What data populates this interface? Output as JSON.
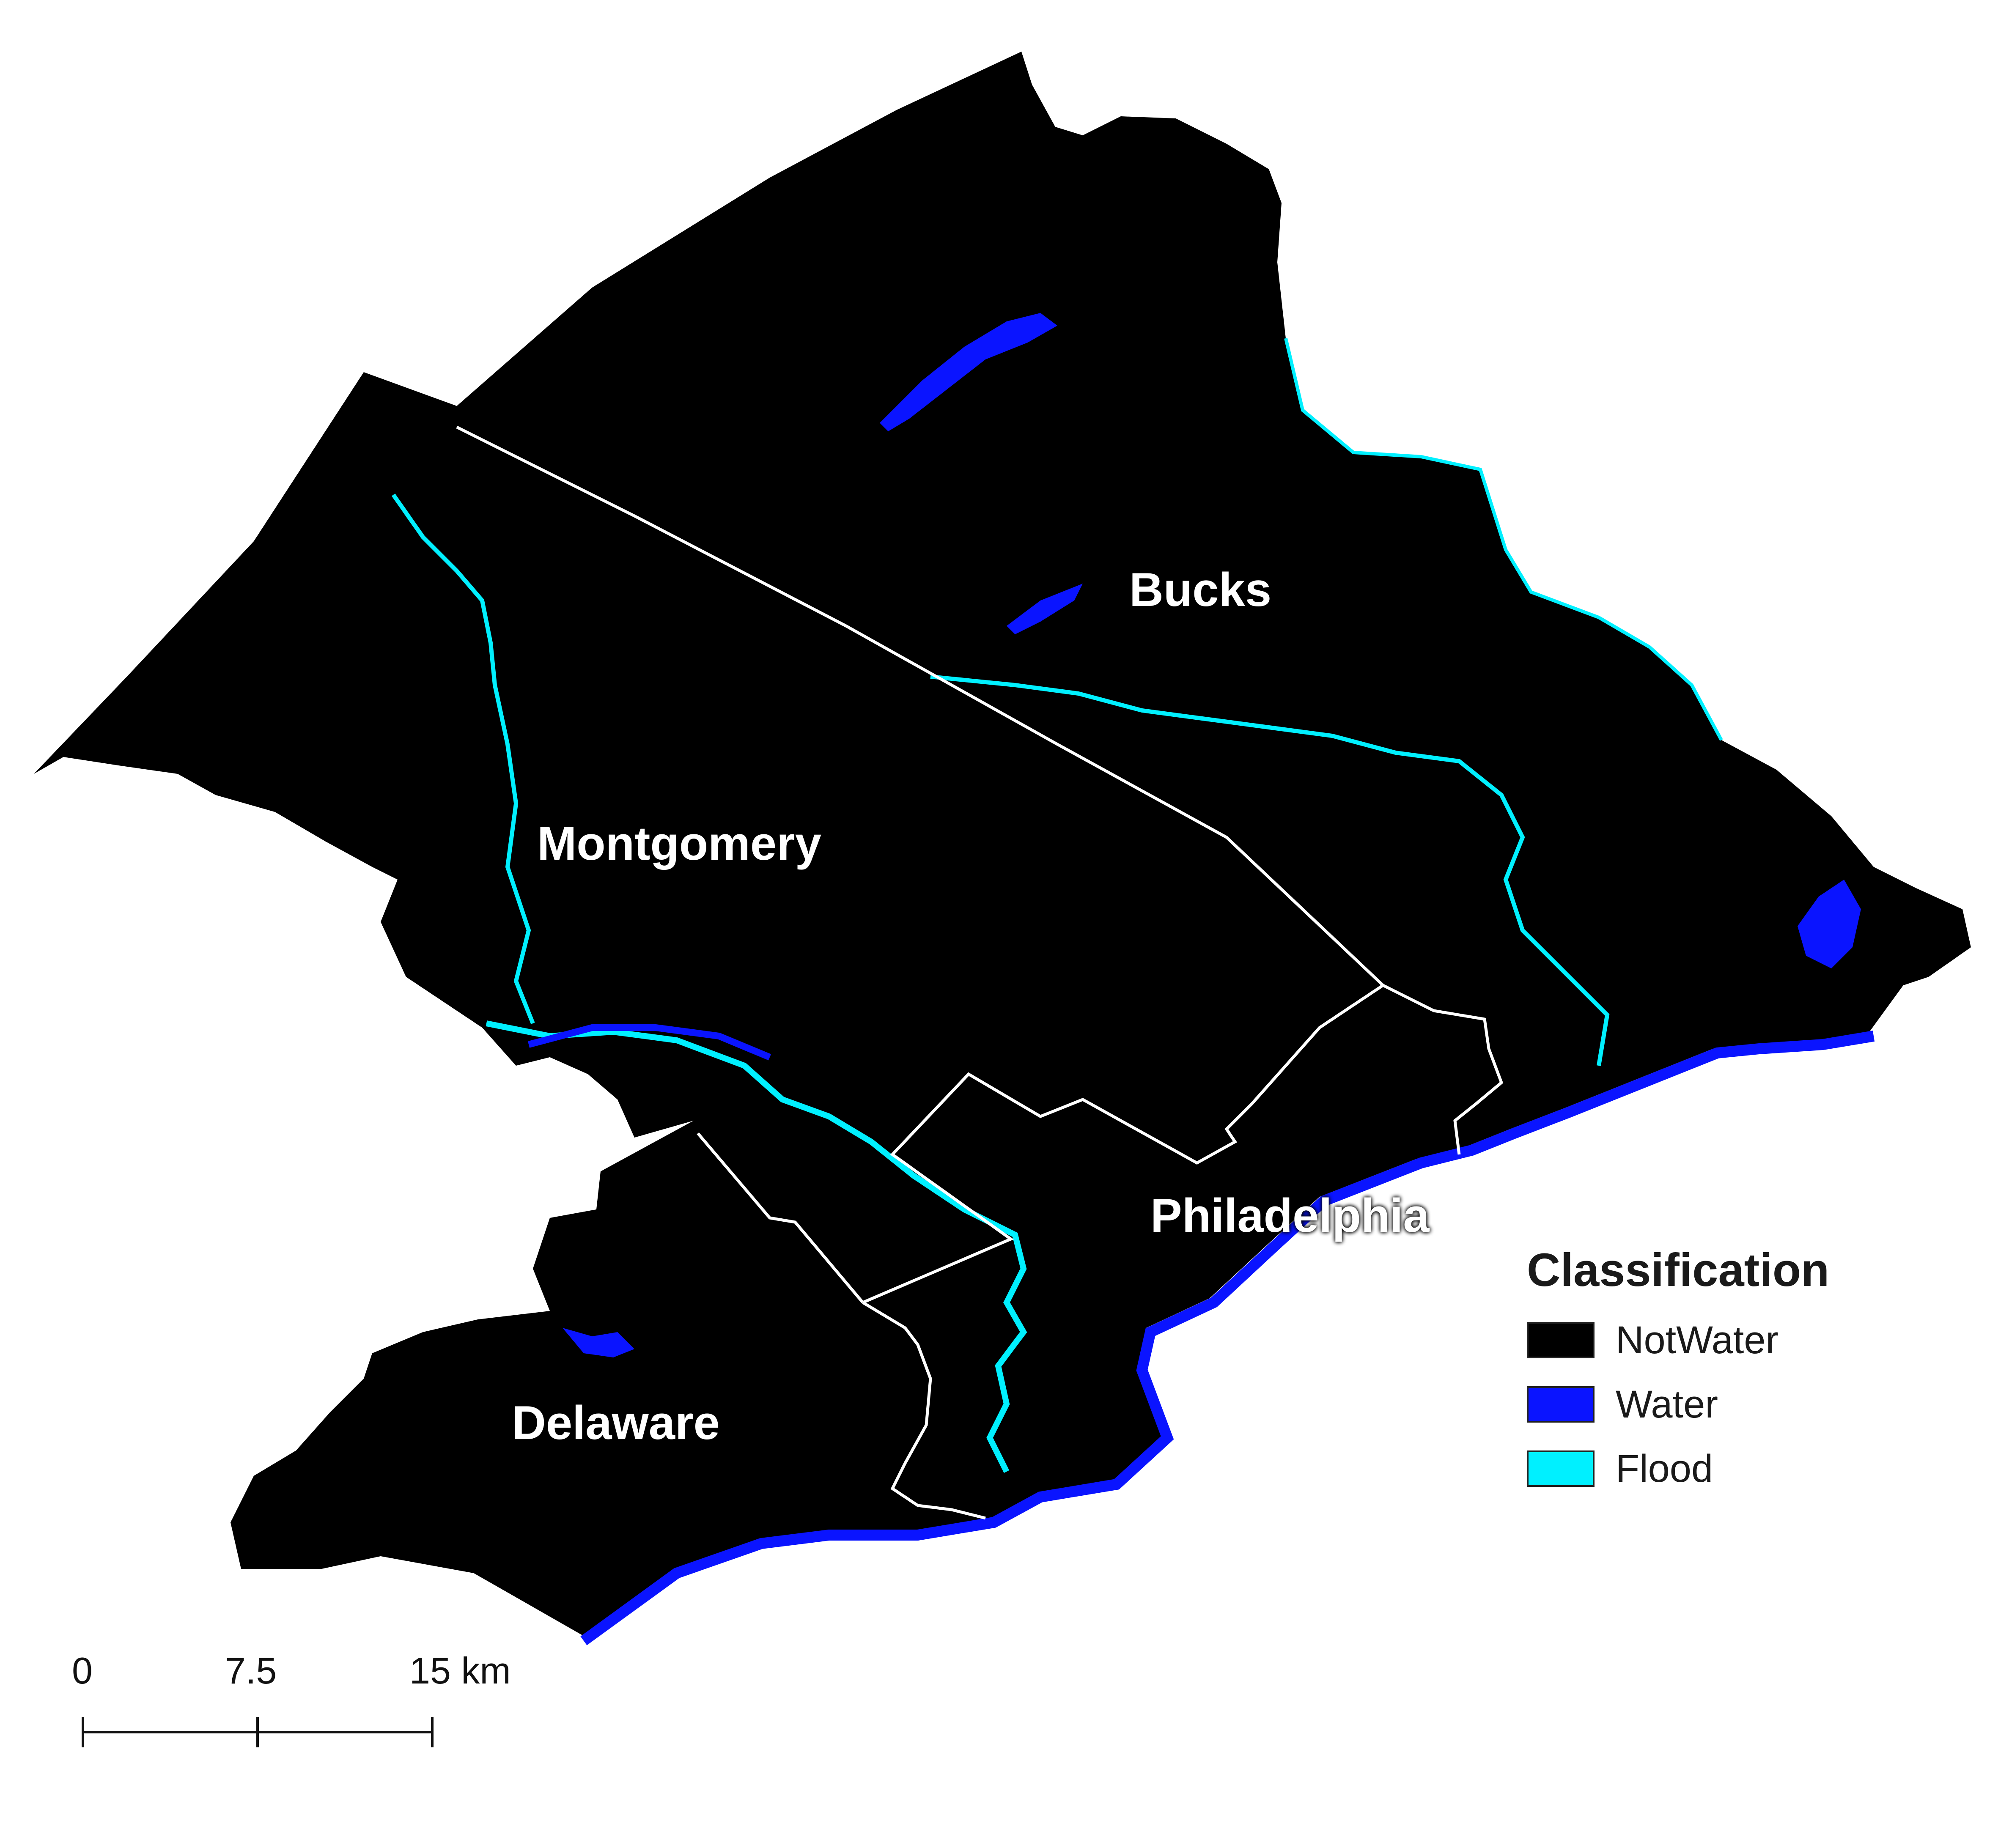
{
  "colors": {
    "not_water": "#000000",
    "water": "#0a14ff",
    "flood": "#00f0ff",
    "boundary": "#ffffff"
  },
  "counties": [
    {
      "name": "Bucks"
    },
    {
      "name": "Montgomery"
    },
    {
      "name": "Philadelphia"
    },
    {
      "name": "Delaware"
    }
  ],
  "legend": {
    "title": "Classification",
    "items": [
      {
        "label": "NotWater",
        "color": "#000000"
      },
      {
        "label": "Water",
        "color": "#0a14ff"
      },
      {
        "label": "Flood",
        "color": "#00f0ff"
      }
    ]
  },
  "scale_bar": {
    "ticks": [
      "0",
      "7.5",
      "15 km"
    ]
  }
}
